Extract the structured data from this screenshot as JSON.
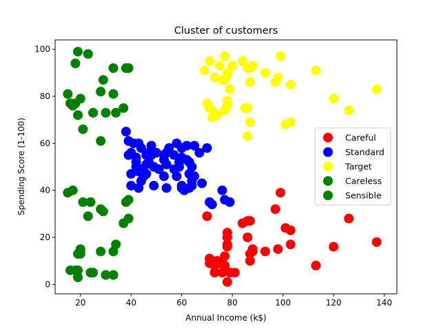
{
  "chart_data": {
    "type": "scatter",
    "title": "Cluster of customers",
    "xlabel": "Annual Income (k$)",
    "ylabel": "Spending Score (1-100)",
    "xlim": [
      10,
      145
    ],
    "ylim": [
      -4,
      104
    ],
    "xticks": [
      20,
      40,
      60,
      80,
      100,
      120,
      140
    ],
    "yticks": [
      0,
      20,
      40,
      60,
      80,
      100
    ],
    "grid": false,
    "legend_position": "center-right",
    "series": [
      {
        "name": "Careful",
        "color": "#ff0000",
        "x": [
          70,
          71,
          71,
          72,
          73,
          73,
          74,
          75,
          76,
          77,
          77,
          78,
          78,
          78,
          78,
          78,
          79,
          81,
          84,
          86,
          86,
          87,
          87,
          87,
          88,
          88,
          93,
          97,
          98,
          99,
          101,
          103,
          103,
          113,
          120,
          126,
          137
        ],
        "y": [
          29,
          11,
          9,
          10,
          5,
          8,
          10,
          9,
          5,
          8,
          12,
          1,
          16,
          17,
          20,
          22,
          5,
          5,
          26,
          20,
          27,
          10,
          13,
          27,
          14,
          15,
          14,
          32,
          15,
          39,
          24,
          17,
          23,
          8,
          16,
          28,
          18
        ]
      },
      {
        "name": "Standard",
        "color": "#0000ff",
        "x": [
          38,
          39,
          39,
          40,
          40,
          40,
          41,
          42,
          42,
          42,
          43,
          43,
          43,
          44,
          44,
          44,
          45,
          46,
          46,
          46,
          47,
          47,
          48,
          48,
          48,
          49,
          49,
          50,
          51,
          53,
          53,
          53,
          54,
          54,
          54,
          55,
          57,
          57,
          58,
          58,
          59,
          59,
          60,
          60,
          60,
          60,
          61,
          62,
          62,
          63,
          63,
          63,
          64,
          64,
          64,
          65,
          65,
          67,
          68,
          70,
          71,
          72,
          76,
          77,
          79
        ],
        "y": [
          65,
          61,
          55,
          47,
          42,
          56,
          60,
          52,
          50,
          54,
          60,
          48,
          41,
          58,
          44,
          49,
          46,
          51,
          55,
          47,
          52,
          56,
          59,
          57,
          55,
          42,
          50,
          56,
          49,
          53,
          55,
          46,
          51,
          56,
          41,
          58,
          55,
          49,
          46,
          60,
          50,
          52,
          54,
          58,
          41,
          42,
          40,
          53,
          59,
          41,
          52,
          47,
          50,
          42,
          44,
          46,
          59,
          56,
          43,
          58,
          35,
          34,
          40,
          36,
          35
        ]
      },
      {
        "name": "Target",
        "color": "#ffff00",
        "x": [
          69,
          70,
          71,
          71,
          72,
          73,
          73,
          74,
          75,
          76,
          77,
          77,
          77,
          78,
          78,
          78,
          78,
          79,
          80,
          84,
          85,
          86,
          86,
          86,
          87,
          87,
          87,
          88,
          93,
          97,
          98,
          99,
          101,
          103,
          103,
          113,
          120,
          126,
          137
        ],
        "y": [
          91,
          77,
          95,
          75,
          71,
          88,
          73,
          72,
          93,
          87,
          97,
          74,
          87,
          89,
          78,
          76,
          90,
          83,
          93,
          95,
          75,
          75,
          92,
          63,
          69,
          86,
          92,
          93,
          90,
          86,
          88,
          97,
          68,
          85,
          69,
          91,
          79,
          74,
          83
        ]
      },
      {
        "name": "Careless",
        "color": "#008000",
        "x": [
          15,
          15,
          16,
          16,
          17,
          17,
          18,
          18,
          19,
          19,
          19,
          20,
          20,
          20,
          21,
          23,
          23,
          24,
          25,
          25,
          25,
          28,
          28,
          28,
          29,
          29,
          30,
          33,
          33,
          34,
          37,
          38,
          39,
          39
        ],
        "y": [
          39,
          81,
          6,
          77,
          40,
          76,
          6,
          94,
          3,
          72,
          99,
          14,
          15,
          79,
          35,
          98,
          29,
          35,
          5,
          73,
          73,
          14,
          82,
          32,
          31,
          87,
          4,
          4,
          92,
          17,
          26,
          35,
          36,
          28
        ]
      },
      {
        "name": "Sensible",
        "color": "#008000",
        "x": [
          18,
          19,
          19,
          20,
          21,
          24,
          28,
          30,
          33,
          33,
          34,
          37,
          38,
          39
        ],
        "y": [
          77,
          13,
          6,
          13,
          66,
          5,
          61,
          73,
          14,
          81,
          73,
          75,
          92,
          92
        ]
      }
    ]
  }
}
